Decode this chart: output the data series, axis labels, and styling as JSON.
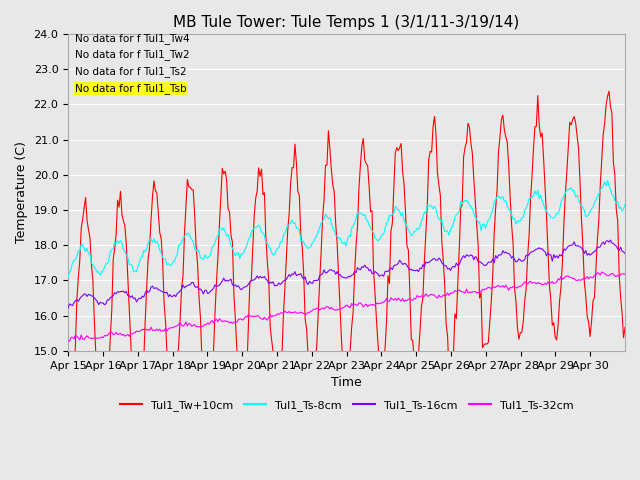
{
  "title": "MB Tule Tower: Tule Temps 1 (3/1/11-3/19/14)",
  "xlabel": "Time",
  "ylabel": "Temperature (C)",
  "ylim": [
    15.0,
    24.0
  ],
  "yticks": [
    15.0,
    16.0,
    17.0,
    18.0,
    19.0,
    20.0,
    21.0,
    22.0,
    23.0,
    24.0
  ],
  "xtick_labels": [
    "Apr 15",
    "Apr 16",
    "Apr 17",
    "Apr 18",
    "Apr 19",
    "Apr 20",
    "Apr 21",
    "Apr 22",
    "Apr 23",
    "Apr 24",
    "Apr 25",
    "Apr 26",
    "Apr 27",
    "Apr 28",
    "Apr 29",
    "Apr 30"
  ],
  "no_data_lines": [
    "No data for f Tul1_Tw4",
    "No data for f Tul1_Tw2",
    "No data for f Tul1_Ts2",
    "No data for f Tul1_Tsb"
  ],
  "legend_labels": [
    "Tul1_Tw+10cm",
    "Tul1_Ts-8cm",
    "Tul1_Ts-16cm",
    "Tul1_Ts-32cm"
  ],
  "line_colors": [
    "#ff0000",
    "#00ffff",
    "#8000ff",
    "#ff00ff"
  ],
  "plot_bg_color": "#e8e8e8",
  "title_fontsize": 11,
  "axis_fontsize": 9,
  "tick_fontsize": 8
}
